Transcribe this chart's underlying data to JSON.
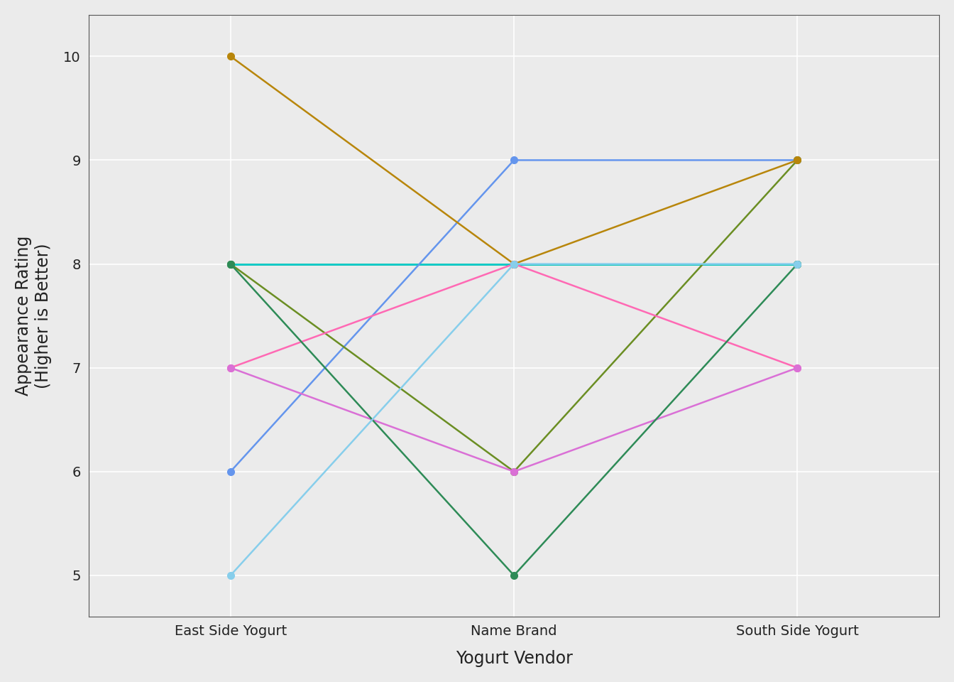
{
  "title": "",
  "xlabel": "Yogurt Vendor",
  "ylabel": "Appearance Rating\n(Higher is Better)",
  "vendors": [
    "East Side Yogurt",
    "Name Brand",
    "South Side Yogurt"
  ],
  "xlim": [
    -0.5,
    2.5
  ],
  "ylim": [
    4.6,
    10.4
  ],
  "yticks": [
    5,
    6,
    7,
    8,
    9,
    10
  ],
  "background_color": "#EBEBEB",
  "plot_bg_color": "#EBEBEB",
  "grid_color": "#FFFFFF",
  "participants": [
    {
      "color": "#F08080",
      "values": [
        8,
        8,
        8
      ]
    },
    {
      "color": "#3CB371",
      "values": [
        8,
        8,
        8
      ]
    },
    {
      "color": "#00CED1",
      "values": [
        8,
        8,
        8
      ]
    },
    {
      "color": "#6495ED",
      "values": [
        6,
        9,
        9
      ]
    },
    {
      "color": "#6B8E23",
      "values": [
        8,
        6,
        9
      ]
    },
    {
      "color": "#B8860B",
      "values": [
        10,
        8,
        9
      ]
    },
    {
      "color": "#FF69B4",
      "values": [
        7,
        8,
        7
      ]
    },
    {
      "color": "#DA70D6",
      "values": [
        7,
        6,
        7
      ]
    },
    {
      "color": "#2E8B57",
      "values": [
        8,
        5,
        8
      ]
    },
    {
      "color": "#87CEEB",
      "values": [
        5,
        8,
        8
      ]
    }
  ]
}
